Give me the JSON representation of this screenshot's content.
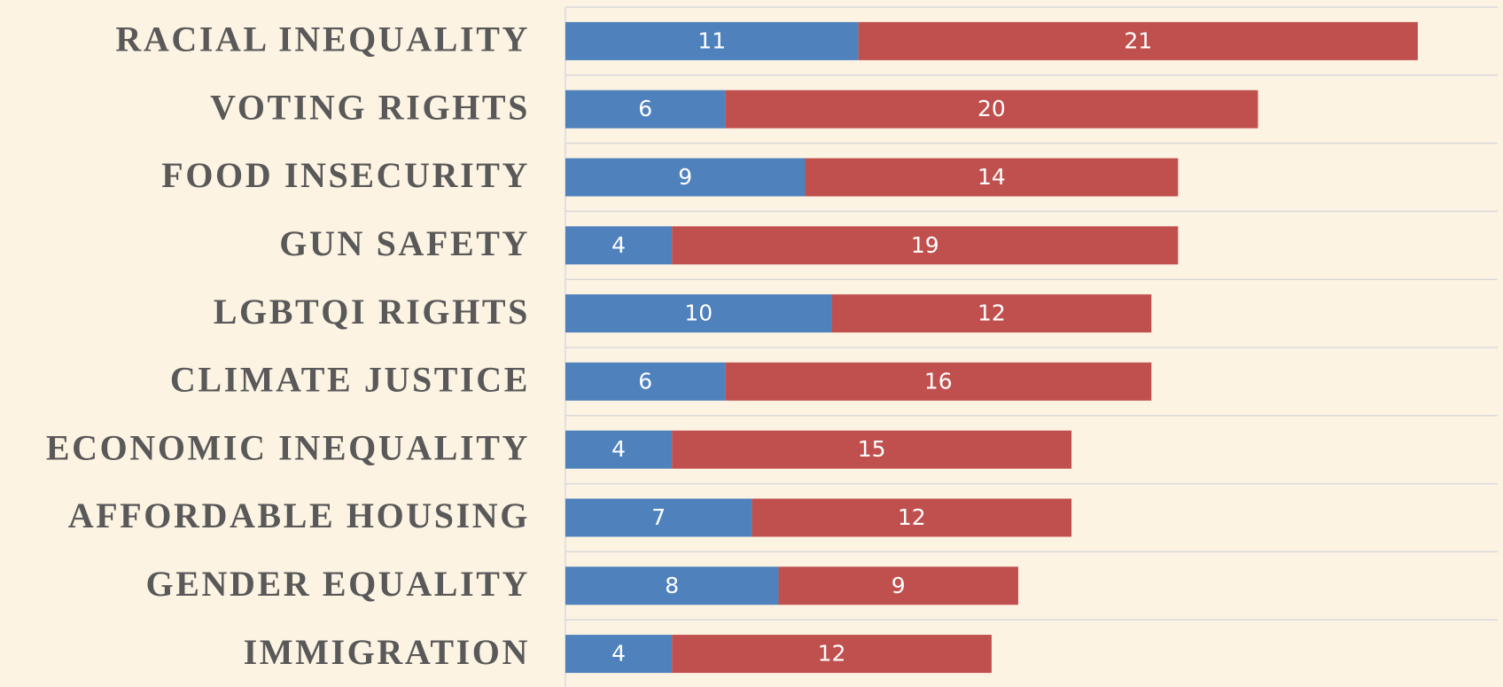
{
  "chart_data": {
    "type": "stacked-barh",
    "categories": [
      "RACIAL INEQUALITY",
      "VOTING RIGHTS",
      "FOOD INSECURITY",
      "GUN SAFETY",
      "LGBTQI RIGHTS",
      "CLIMATE JUSTICE",
      "ECONOMIC INEQUALITY",
      "AFFORDABLE HOUSING",
      "GENDER EQUALITY",
      "IMMIGRATION"
    ],
    "series": [
      {
        "color": "#4f81bd",
        "values": [
          11,
          6,
          9,
          4,
          10,
          6,
          4,
          7,
          8,
          4
        ]
      },
      {
        "color": "#c0504d",
        "values": [
          21,
          20,
          14,
          19,
          12,
          16,
          15,
          12,
          9,
          12
        ]
      }
    ],
    "xlim": [
      0,
      35
    ]
  }
}
